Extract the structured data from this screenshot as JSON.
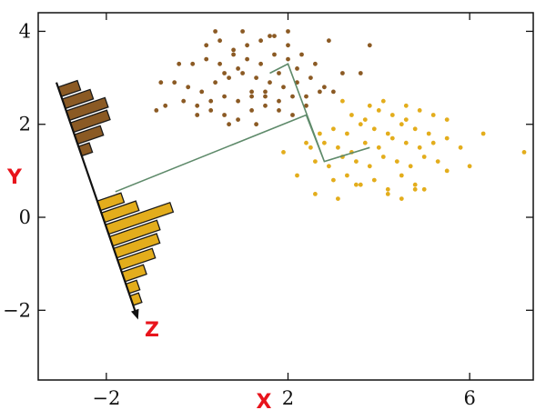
{
  "chart_data": {
    "type": "scatter",
    "xlabel": "X",
    "ylabel": "Y",
    "zlabel": "Z",
    "xlim": [
      -3.5,
      7.4
    ],
    "ylim": [
      -3.5,
      4.4
    ],
    "xticks": [
      -2,
      2,
      6
    ],
    "xtick_labels": [
      "−2",
      "2",
      "6"
    ],
    "yticks": [
      -2,
      0,
      2,
      4
    ],
    "ytick_labels": [
      "−2",
      "0",
      "2",
      "4"
    ],
    "grid": false,
    "colors": {
      "class_a": "#8b5a24",
      "class_b": "#e3ad1c",
      "projection_line": "#5e8a6a",
      "axis_letters": "#e8141c",
      "z_axis": "#111111"
    },
    "series": [
      {
        "x": [
          -0.5,
          -0.2,
          0.1,
          0.4,
          0.7,
          1.0,
          1.3,
          1.6,
          1.9,
          2.2,
          2.5,
          2.8,
          -0.3,
          0.0,
          0.3,
          0.6,
          0.9,
          1.2,
          1.5,
          1.8,
          2.1,
          2.4,
          2.7,
          3.0,
          -0.4,
          -0.1,
          0.2,
          0.5,
          0.8,
          1.1,
          1.4,
          1.7,
          2.0,
          2.3,
          2.6,
          0.0,
          0.3,
          0.6,
          0.9,
          1.2,
          1.5,
          1.8,
          2.1,
          2.4,
          0.2,
          0.5,
          0.8,
          1.1,
          1.4,
          1.7,
          2.0,
          0.6,
          0.9,
          1.2,
          1.5,
          1.8,
          2.2,
          3.2,
          3.8,
          -0.9,
          -0.8,
          -0.7,
          2.9,
          3.6,
          0.4,
          1.0,
          1.6,
          2.0,
          0.7,
          1.3
        ],
        "y": [
          2.9,
          2.8,
          2.7,
          2.9,
          3.0,
          3.1,
          3.0,
          2.9,
          2.8,
          2.9,
          3.0,
          2.8,
          2.5,
          2.4,
          2.5,
          2.6,
          2.5,
          2.7,
          2.6,
          2.5,
          2.6,
          2.6,
          2.7,
          2.7,
          3.3,
          3.3,
          3.4,
          3.3,
          3.5,
          3.4,
          3.3,
          3.5,
          3.4,
          3.5,
          3.3,
          2.2,
          2.3,
          2.2,
          2.1,
          2.3,
          2.4,
          2.3,
          2.2,
          2.4,
          3.7,
          3.8,
          3.6,
          3.7,
          3.8,
          3.9,
          3.7,
          3.1,
          3.2,
          2.6,
          2.7,
          3.1,
          3.2,
          3.1,
          3.7,
          2.3,
          2.9,
          2.4,
          3.8,
          3.1,
          4.0,
          4.0,
          3.9,
          4.0,
          2.0,
          2.0
        ]
      },
      {
        "x": [
          2.5,
          2.8,
          3.1,
          3.4,
          3.7,
          4.0,
          4.3,
          4.6,
          4.9,
          5.2,
          5.5,
          5.8,
          2.6,
          2.9,
          3.2,
          3.5,
          3.8,
          4.1,
          4.4,
          4.7,
          5.0,
          5.3,
          2.7,
          3.0,
          3.3,
          3.6,
          3.9,
          4.2,
          4.5,
          4.8,
          5.1,
          3.0,
          3.3,
          3.6,
          3.9,
          4.2,
          4.5,
          4.8,
          3.4,
          3.7,
          4.0,
          4.3,
          4.6,
          4.9,
          5.2,
          5.5,
          6.3,
          7.2,
          1.9,
          2.2,
          2.4,
          2.6,
          3.1,
          3.5,
          4.2,
          4.5,
          4.8,
          5.0,
          5.5,
          6.0,
          3.8,
          4.1,
          3.2,
          4.6
        ],
        "y": [
          1.5,
          1.6,
          1.5,
          1.4,
          1.6,
          1.5,
          1.7,
          1.6,
          1.5,
          1.6,
          1.7,
          1.5,
          1.2,
          1.1,
          1.3,
          1.2,
          1.1,
          1.3,
          1.2,
          1.1,
          1.3,
          1.2,
          1.8,
          1.9,
          1.8,
          2.0,
          1.9,
          1.8,
          2.0,
          1.9,
          1.8,
          0.8,
          0.9,
          0.7,
          0.8,
          0.6,
          0.9,
          0.7,
          2.2,
          2.1,
          2.3,
          2.2,
          2.1,
          2.3,
          2.2,
          2.1,
          1.8,
          1.4,
          1.4,
          0.9,
          1.6,
          0.5,
          0.4,
          0.7,
          0.5,
          0.4,
          0.6,
          0.6,
          1.0,
          1.1,
          2.4,
          2.5,
          2.5,
          2.4
        ]
      }
    ],
    "projection_path": {
      "x": [
        -1.8,
        2.4,
        2.8,
        3.8,
        2.8,
        2.0,
        1.6
      ],
      "y": [
        0.55,
        2.2,
        1.2,
        1.5,
        1.2,
        3.3,
        3.1
      ]
    },
    "z_axis": {
      "start": [
        -3.1,
        2.9
      ],
      "end": [
        -1.3,
        -2.2
      ],
      "arrow": true
    },
    "histogram_class_a": {
      "t": [
        0.04,
        0.09,
        0.14,
        0.19,
        0.24,
        0.29
      ],
      "values": [
        0.9,
        1.3,
        1.8,
        1.7,
        1.2,
        0.5
      ]
    },
    "histogram_class_b": {
      "t": [
        0.52,
        0.57,
        0.62,
        0.67,
        0.72,
        0.77,
        0.82,
        0.87,
        0.92
      ],
      "values": [
        1.1,
        1.6,
        3.0,
        2.2,
        2.0,
        1.6,
        1.0,
        0.5,
        0.4
      ]
    }
  }
}
